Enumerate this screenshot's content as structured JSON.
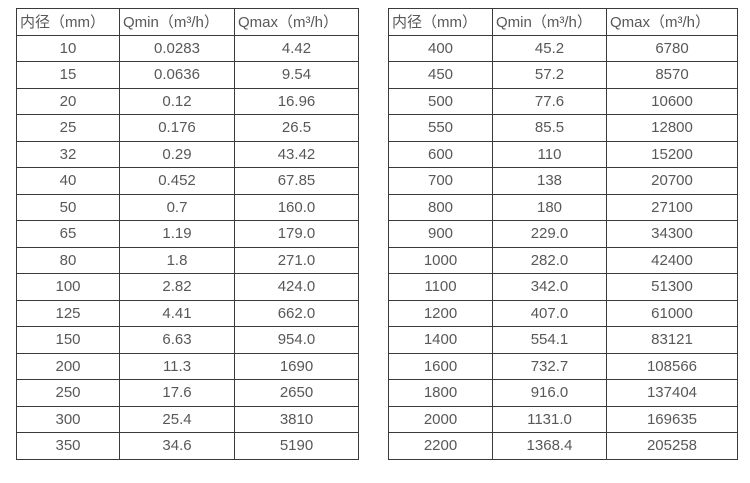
{
  "colors": {
    "border": "#3a3a3c",
    "text": "#58585a",
    "background": "#ffffff"
  },
  "tables": [
    {
      "name": "small-diameter-flow-table",
      "headers": [
        "内径（mm）",
        "Qmin（m³/h）",
        "Qmax（m³/h）"
      ],
      "rows": [
        [
          "10",
          "0.0283",
          "4.42"
        ],
        [
          "15",
          "0.0636",
          "9.54"
        ],
        [
          "20",
          "0.12",
          "16.96"
        ],
        [
          "25",
          "0.176",
          "26.5"
        ],
        [
          "32",
          "0.29",
          "43.42"
        ],
        [
          "40",
          "0.452",
          "67.85"
        ],
        [
          "50",
          "0.7",
          "160.0"
        ],
        [
          "65",
          "1.19",
          "179.0"
        ],
        [
          "80",
          "1.8",
          "271.0"
        ],
        [
          "100",
          "2.82",
          "424.0"
        ],
        [
          "125",
          "4.41",
          "662.0"
        ],
        [
          "150",
          "6.63",
          "954.0"
        ],
        [
          "200",
          "11.3",
          "1690"
        ],
        [
          "250",
          "17.6",
          "2650"
        ],
        [
          "300",
          "25.4",
          "3810"
        ],
        [
          "350",
          "34.6",
          "5190"
        ]
      ]
    },
    {
      "name": "large-diameter-flow-table",
      "headers": [
        "内径（mm）",
        "Qmin（m³/h）",
        "Qmax（m³/h）"
      ],
      "rows": [
        [
          "400",
          "45.2",
          "6780"
        ],
        [
          "450",
          "57.2",
          "8570"
        ],
        [
          "500",
          "77.6",
          "10600"
        ],
        [
          "550",
          "85.5",
          "12800"
        ],
        [
          "600",
          "110",
          "15200"
        ],
        [
          "700",
          "138",
          "20700"
        ],
        [
          "800",
          "180",
          "27100"
        ],
        [
          "900",
          "229.0",
          "34300"
        ],
        [
          "1000",
          "282.0",
          "42400"
        ],
        [
          "1100",
          "342.0",
          "51300"
        ],
        [
          "1200",
          "407.0",
          "61000"
        ],
        [
          "1400",
          "554.1",
          "83121"
        ],
        [
          "1600",
          "732.7",
          "108566"
        ],
        [
          "1800",
          "916.0",
          "137404"
        ],
        [
          "2000",
          "1131.0",
          "169635"
        ],
        [
          "2200",
          "1368.4",
          "205258"
        ]
      ]
    }
  ]
}
